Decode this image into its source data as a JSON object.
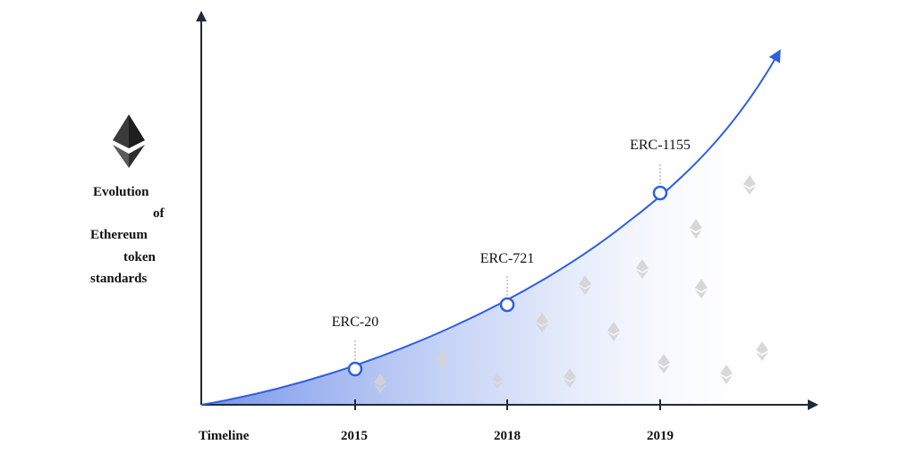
{
  "chart_data": {
    "type": "area",
    "title": "",
    "xlabel": "Timeline",
    "ylabel_lines": [
      "Evolution",
      "of",
      "Ethereum",
      "token",
      "standards"
    ],
    "categories": [
      "2015",
      "2018",
      "2019"
    ],
    "points": [
      {
        "x": "2015",
        "label": "ERC-20"
      },
      {
        "x": "2018",
        "label": "ERC-721"
      },
      {
        "x": "2019",
        "label": "ERC-1155"
      }
    ],
    "grid": false,
    "logo": "ethereum-logo-icon"
  },
  "colors": {
    "curve": "#2f5fe0",
    "fill": "#5c7fe6",
    "axis": "#1e2a3a",
    "marker_fill": "#ffffff",
    "logo_dark": "#3b3b3b",
    "logo_light": "#8a8a8a"
  }
}
